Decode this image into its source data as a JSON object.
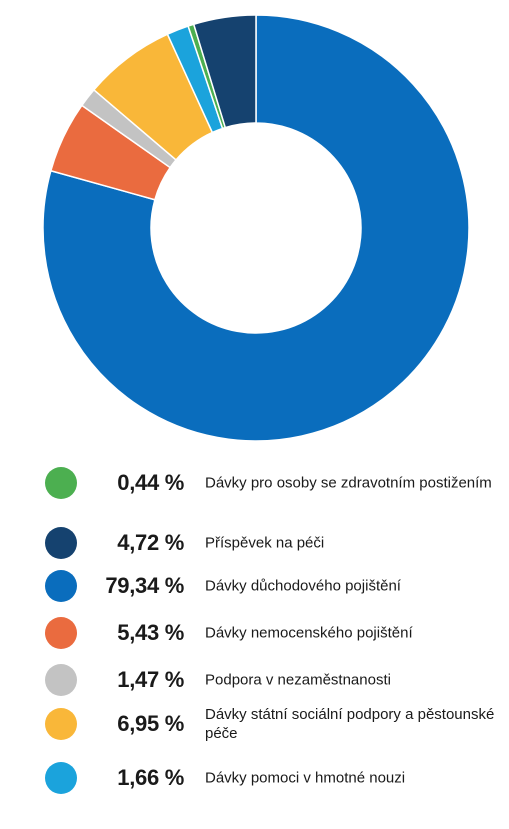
{
  "chart_data": {
    "type": "pie",
    "donut": true,
    "title": "",
    "unit": "%",
    "slices": [
      {
        "label": "Dávky důchodového pojištění",
        "value": 79.34,
        "display": "79,34 %",
        "color": "#0a6dbd"
      },
      {
        "label": "Dávky nemocenského pojištění",
        "value": 5.43,
        "display": "5,43 %",
        "color": "#ea6b3f"
      },
      {
        "label": "Podpora v nezaměstnanosti",
        "value": 1.47,
        "display": "1,47 %",
        "color": "#c3c3c3"
      },
      {
        "label": "Dávky státní sociální podpory a pěstounské péče",
        "value": 6.95,
        "display": "6,95 %",
        "color": "#f9b739"
      },
      {
        "label": "Dávky pomoci v hmotné nouzi",
        "value": 1.66,
        "display": "1,66 %",
        "color": "#1ba3dc"
      },
      {
        "label": "Dávky pro osoby se zdravotním postižením",
        "value": 0.44,
        "display": "0,44 %",
        "color": "#4caf50"
      },
      {
        "label": "Příspěvek na péči",
        "value": 4.72,
        "display": "4,72 %",
        "color": "#15426f"
      }
    ],
    "legend_order": [
      "Dávky pro osoby se zdravotním postižením",
      "Příspěvek na péči",
      "Dávky důchodového pojištění",
      "Dávky nemocenského pojištění",
      "Podpora v nezaměstnanosti",
      "Dávky státní sociální podpory a pěstounské péče",
      "Dávky pomoci v hmotné nouzi"
    ],
    "legend_placement": "bottom"
  }
}
